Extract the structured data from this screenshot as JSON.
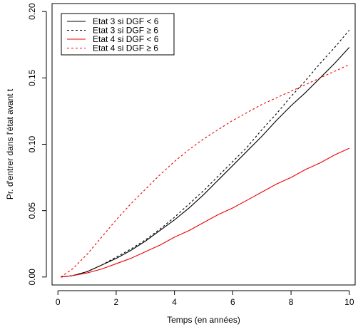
{
  "chart_data": {
    "type": "line",
    "title": "",
    "xlabel": "Temps (en années)",
    "ylabel": "Pr. d'entrer dans l'état avant t",
    "xlim": [
      -0.2,
      10.2
    ],
    "ylim": [
      -0.006,
      0.206
    ],
    "xticks": [
      0,
      2,
      4,
      6,
      8,
      10
    ],
    "xtick_labels": [
      "0",
      "2",
      "4",
      "6",
      "8",
      "10"
    ],
    "yticks": [
      0.0,
      0.05,
      0.1,
      0.15,
      0.2
    ],
    "ytick_labels": [
      "0.00",
      "0.05",
      "0.10",
      "0.15",
      "0.20"
    ],
    "grid": false,
    "legend_position": "top-left",
    "series": [
      {
        "name": "Etat 3 si DGF < 6",
        "color": "#000000",
        "dash": "solid",
        "x": [
          0.1,
          0.5,
          1,
          1.5,
          2,
          2.5,
          3,
          3.5,
          4,
          4.5,
          5,
          5.5,
          6,
          6.5,
          7,
          7.5,
          8,
          8.5,
          9,
          9.5,
          10
        ],
        "y": [
          0.0,
          0.001,
          0.004,
          0.009,
          0.014,
          0.02,
          0.027,
          0.035,
          0.043,
          0.052,
          0.062,
          0.073,
          0.084,
          0.095,
          0.106,
          0.118,
          0.129,
          0.139,
          0.15,
          0.161,
          0.173
        ]
      },
      {
        "name": "Etat 3 si DGF ≥ 6",
        "color": "#000000",
        "dash": "dotted",
        "x": [
          0.1,
          0.5,
          1,
          1.5,
          2,
          2.5,
          3,
          3.5,
          4,
          4.5,
          5,
          5.5,
          6,
          6.5,
          7,
          7.5,
          8,
          8.5,
          9,
          9.5,
          10
        ],
        "y": [
          0.0,
          0.001,
          0.004,
          0.009,
          0.015,
          0.021,
          0.028,
          0.036,
          0.045,
          0.055,
          0.065,
          0.076,
          0.087,
          0.098,
          0.111,
          0.123,
          0.136,
          0.148,
          0.161,
          0.173,
          0.186
        ]
      },
      {
        "name": "Etat 4 si DGF < 6",
        "color": "#ee0000",
        "dash": "solid",
        "x": [
          0.1,
          0.5,
          1,
          1.5,
          2,
          2.5,
          3,
          3.5,
          4,
          4.5,
          5,
          5.5,
          6,
          6.5,
          7,
          7.5,
          8,
          8.5,
          9,
          9.5,
          10
        ],
        "y": [
          0.0,
          0.001,
          0.003,
          0.006,
          0.01,
          0.014,
          0.019,
          0.024,
          0.03,
          0.035,
          0.041,
          0.047,
          0.052,
          0.058,
          0.064,
          0.07,
          0.075,
          0.081,
          0.086,
          0.092,
          0.097
        ]
      },
      {
        "name": "Etat 4 si DGF ≥ 6",
        "color": "#ee0000",
        "dash": "dotted",
        "x": [
          0.1,
          0.5,
          1,
          1.5,
          2,
          2.5,
          3,
          3.5,
          4,
          4.5,
          5,
          5.5,
          6,
          6.5,
          7,
          7.5,
          8,
          8.5,
          9,
          9.5,
          10
        ],
        "y": [
          0.0,
          0.006,
          0.017,
          0.03,
          0.043,
          0.055,
          0.066,
          0.077,
          0.087,
          0.096,
          0.104,
          0.111,
          0.118,
          0.124,
          0.13,
          0.135,
          0.14,
          0.145,
          0.15,
          0.155,
          0.16
        ]
      }
    ]
  }
}
